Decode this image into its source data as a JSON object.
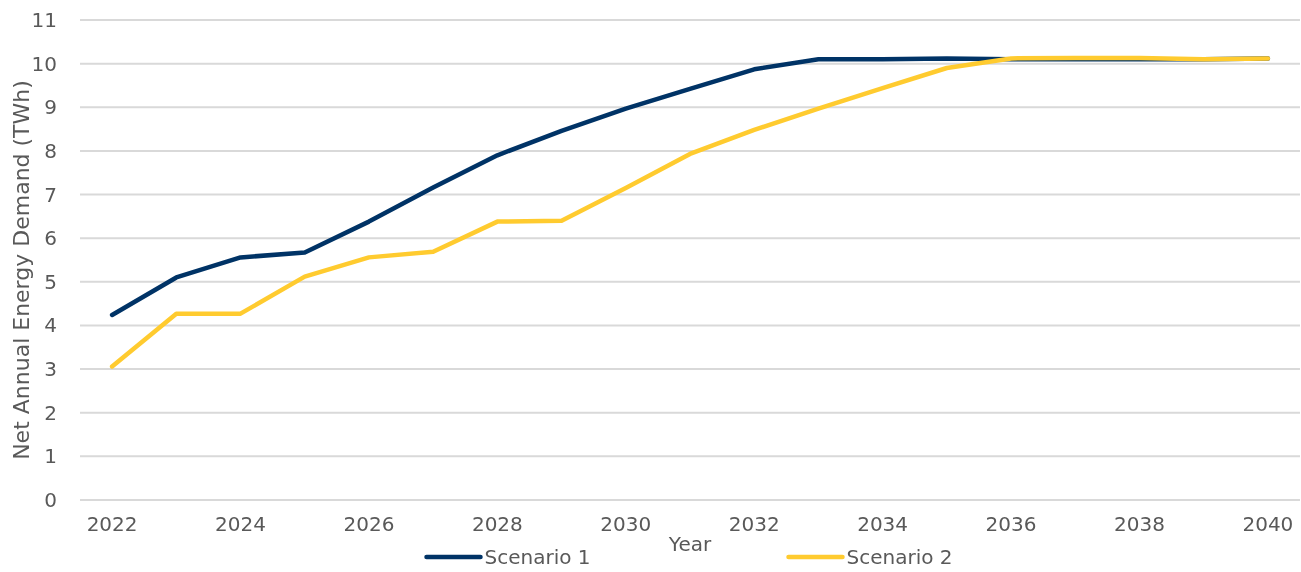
{
  "chart_data": {
    "type": "line",
    "categories": [
      "2022",
      null,
      "2024",
      null,
      "2026",
      null,
      "2028",
      null,
      "2030",
      null,
      "2032",
      null,
      "2034",
      null,
      "2036",
      null,
      "2038",
      null,
      "2040"
    ],
    "series": [
      {
        "name": "Scenario 1",
        "color": "#003366",
        "values": [
          4.24,
          5.1,
          5.56,
          5.67,
          6.38,
          7.16,
          7.9,
          8.46,
          8.97,
          9.42,
          9.87,
          10.1,
          10.1,
          10.12,
          10.1,
          10.1,
          10.1,
          10.1,
          10.12
        ]
      },
      {
        "name": "Scenario 2",
        "color": "#ffcb2f",
        "values": [
          3.06,
          4.27,
          4.27,
          5.12,
          5.56,
          5.69,
          6.38,
          6.4,
          7.15,
          7.93,
          8.48,
          8.97,
          9.44,
          9.9,
          10.12,
          10.13,
          10.13,
          10.1,
          10.12
        ]
      }
    ],
    "xlabel": "Year",
    "ylabel": "Net Annual Energy Demand (TWh)",
    "ylim": [
      0,
      11
    ],
    "yticks": [
      0,
      1,
      2,
      3,
      4,
      5,
      6,
      7,
      8,
      9,
      10,
      11
    ],
    "grid": "y",
    "legend": "bottom"
  }
}
